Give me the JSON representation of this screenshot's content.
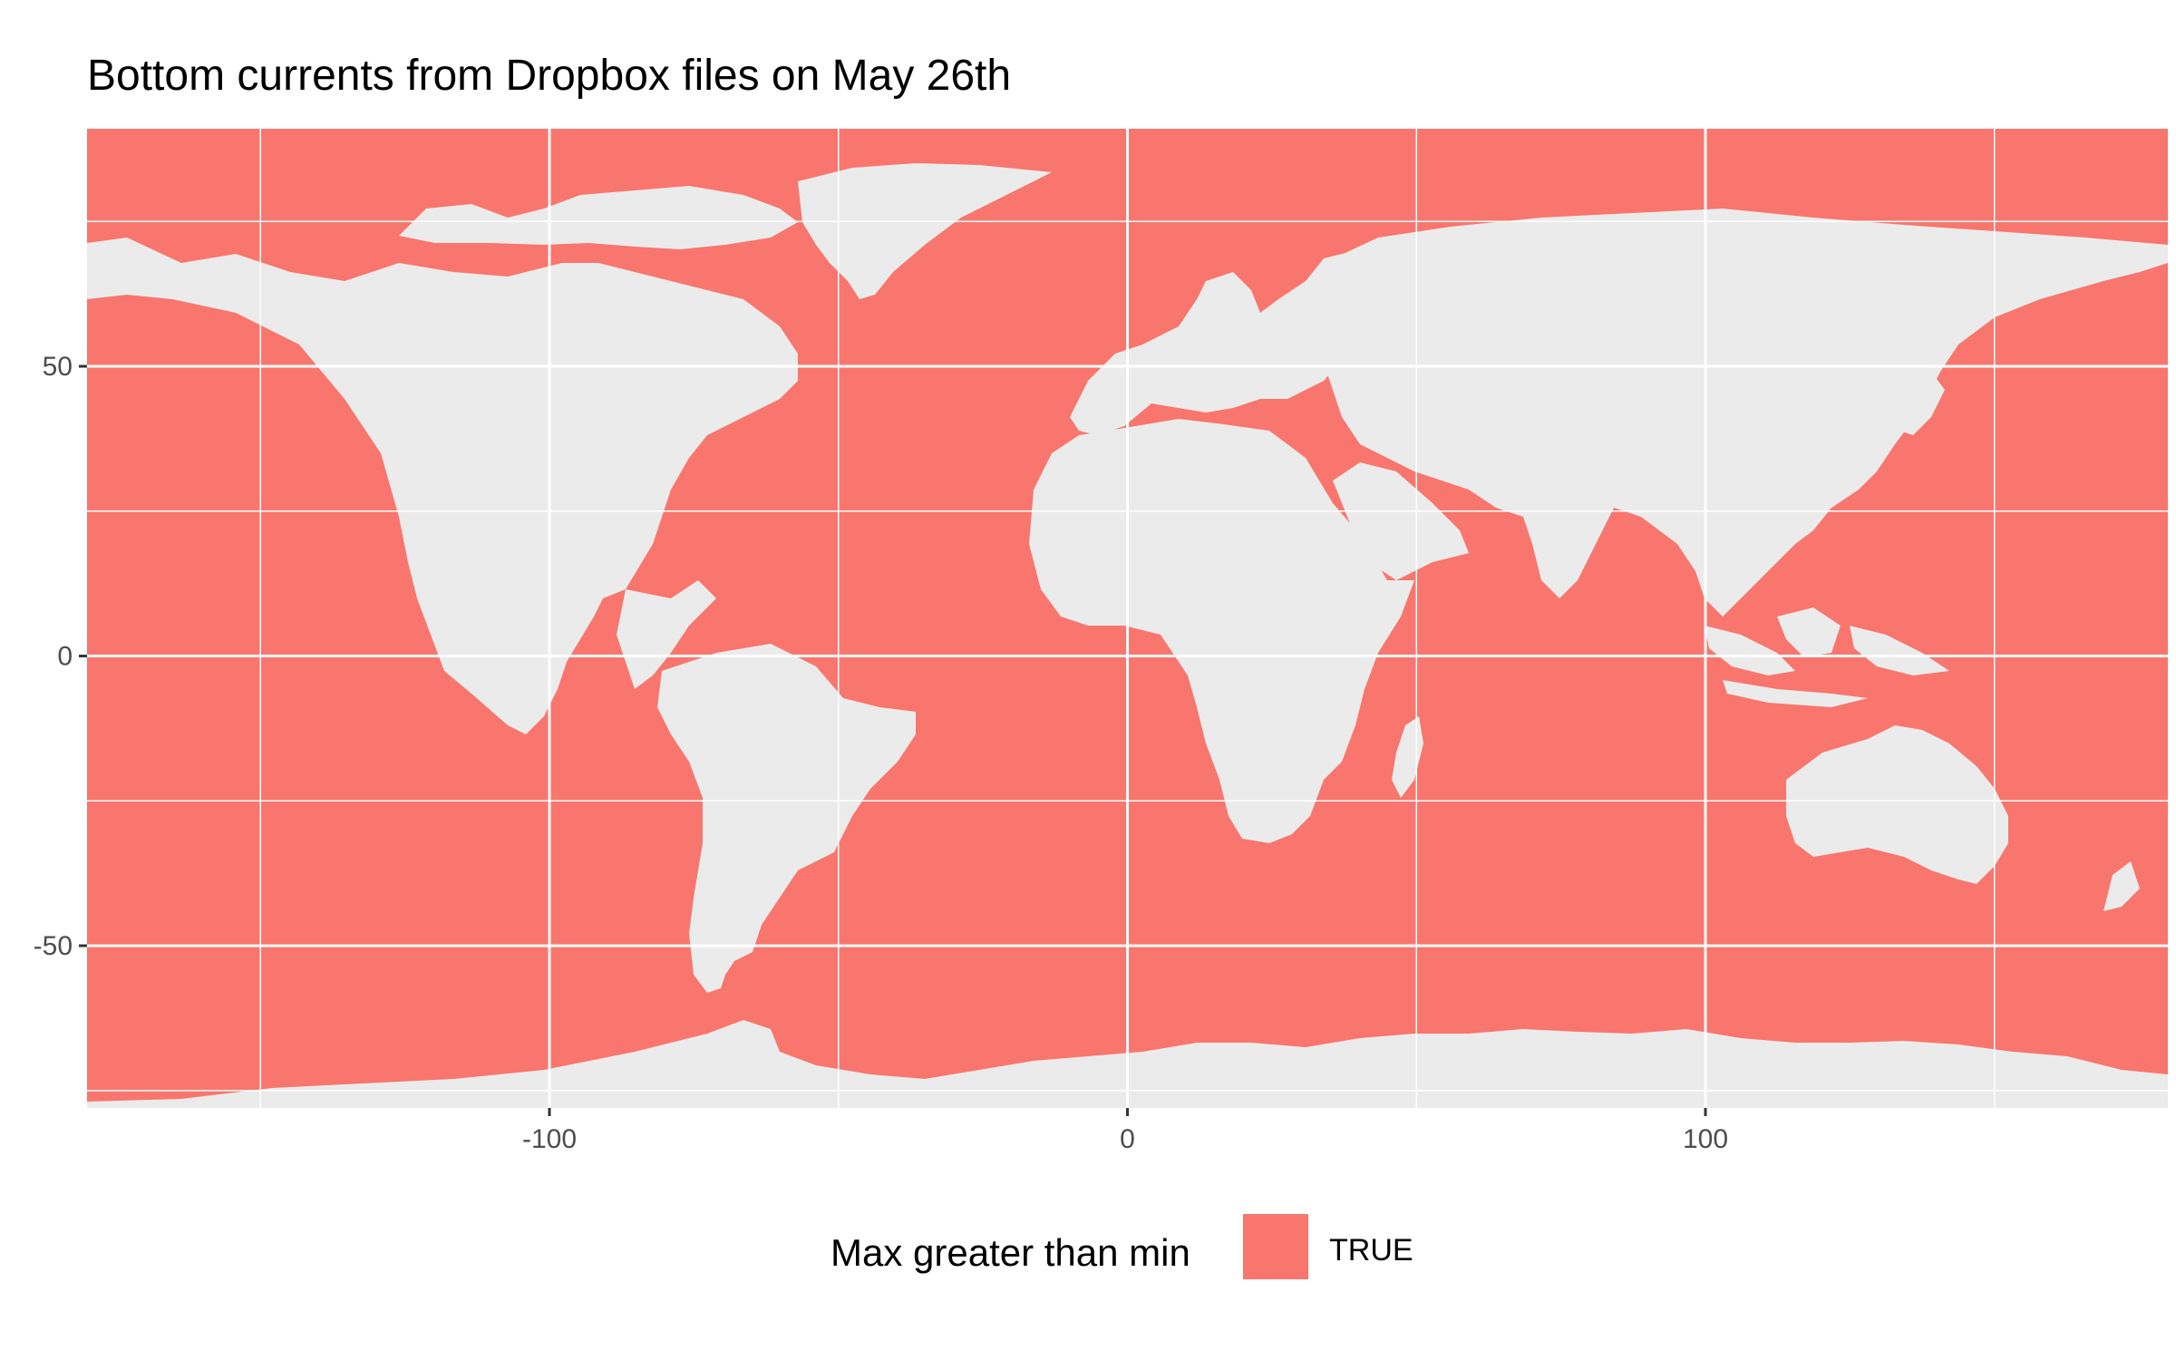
{
  "title": "Bottom currents from Dropbox files on May 26th",
  "chart_data": {
    "type": "map",
    "projection": "equirectangular",
    "xlim": [
      -180,
      180
    ],
    "ylim": [
      -78,
      91
    ],
    "x_ticks": [
      -100,
      0,
      100
    ],
    "x_tick_labels": [
      "-100",
      "0",
      "100"
    ],
    "y_ticks": [
      -50,
      0,
      50
    ],
    "y_tick_labels": [
      "-50",
      "0",
      "50"
    ],
    "x_minor": [
      -150,
      -50,
      50,
      150
    ],
    "y_minor": [
      -75,
      -25,
      25,
      75
    ],
    "grid": true,
    "panel_background": "#EBEBEB",
    "fill_variable": "Max greater than min",
    "categories": [
      {
        "value": "TRUE",
        "color": "#F8766D"
      }
    ],
    "legend_position": "bottom",
    "land_color": "#EBEBEB",
    "ocean_fill": "TRUE"
  },
  "legend": {
    "title": "Max greater than min",
    "label": "TRUE",
    "color": "#F8766D"
  },
  "colors": {
    "true_fill": "#F8766D",
    "panel": "#EBEBEB",
    "grid": "#FFFFFF"
  }
}
